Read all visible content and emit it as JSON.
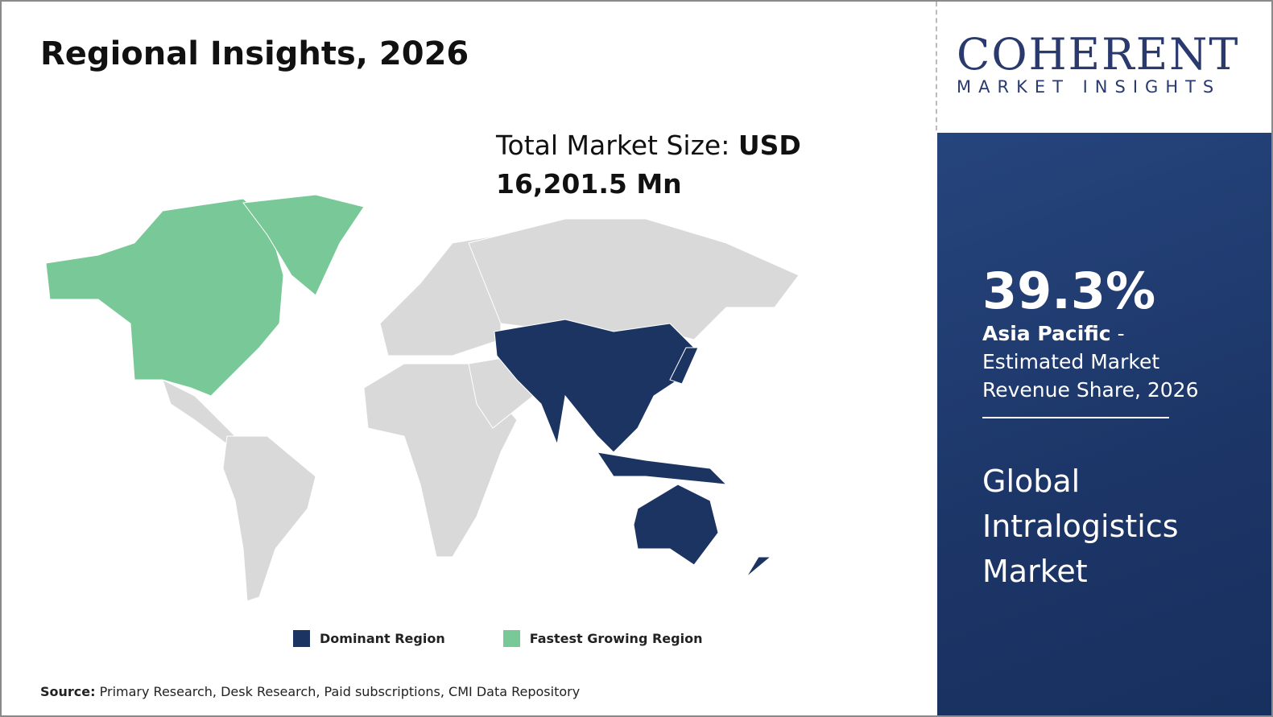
{
  "header": {
    "title": "Regional Insights, 2026"
  },
  "market_size": {
    "label": "Total Market Size:",
    "value": "USD 16,201.5 Mn"
  },
  "legend": [
    {
      "label": "Dominant Region",
      "color": "#1b3461"
    },
    {
      "label": "Fastest Growing Region",
      "color": "#79c897"
    }
  ],
  "source": {
    "label": "Source:",
    "text": "Primary Research, Desk Research, Paid subscriptions, CMI Data Repository"
  },
  "logo": {
    "name": "COHERENT",
    "tagline": "MARKET INSIGHTS"
  },
  "panel": {
    "share": "39.3%",
    "region": "Asia Pacific",
    "description": "- Estimated Market Revenue Share, 2026",
    "market": "Global Intralogistics Market"
  }
}
